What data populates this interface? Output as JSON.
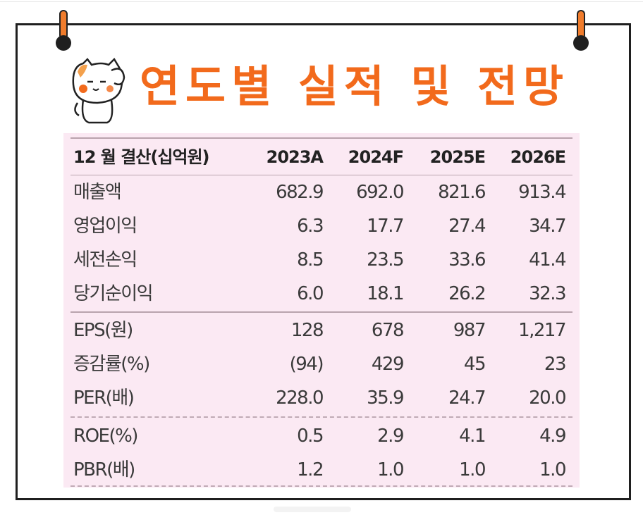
{
  "title": "연도별 실적 및 전망",
  "table": {
    "header": {
      "label": "12 월 결산(십억원)",
      "years": [
        "2023A",
        "2024F",
        "2025E",
        "2026E"
      ]
    },
    "rows": [
      {
        "label": "매출액",
        "values": [
          "682.9",
          "692.0",
          "821.6",
          "913.4"
        ]
      },
      {
        "label": "영업이익",
        "values": [
          "6.3",
          "17.7",
          "27.4",
          "34.7"
        ]
      },
      {
        "label": "세전손익",
        "values": [
          "8.5",
          "23.5",
          "33.6",
          "41.4"
        ]
      },
      {
        "label": "당기순이익",
        "values": [
          "6.0",
          "18.1",
          "26.2",
          "32.3"
        ]
      },
      {
        "label": "EPS(원)",
        "values": [
          "128",
          "678",
          "987",
          "1,217"
        ]
      },
      {
        "label": "증감률(%)",
        "values": [
          "(94)",
          "429",
          "45",
          "23"
        ]
      },
      {
        "label": "PER(배)",
        "values": [
          "228.0",
          "35.9",
          "24.7",
          "20.0"
        ]
      },
      {
        "label": "ROE(%)",
        "values": [
          "0.5",
          "2.9",
          "4.1",
          "4.9"
        ]
      },
      {
        "label": "PBR(배)",
        "values": [
          "1.2",
          "1.0",
          "1.0",
          "1.0"
        ]
      }
    ]
  },
  "colors": {
    "accent": "#f26a1c",
    "table_background": "#fbe9f3",
    "border": "#1f1f1f"
  },
  "icons": {
    "mascot": "cat-mascot-icon",
    "pins": "binder-clip-icon"
  }
}
